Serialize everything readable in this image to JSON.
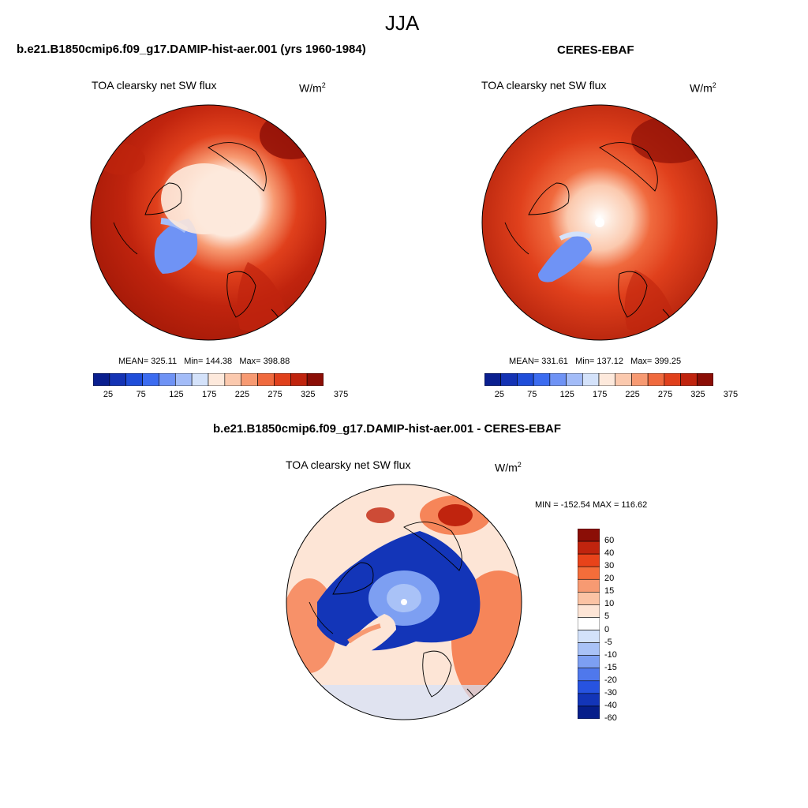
{
  "title": "JJA",
  "panels": {
    "left": {
      "case": "b.e21.B1850cmip6.f09_g17.DAMIP-hist-aer.001 (yrs 1960-1984)",
      "variable": "TOA clearsky net SW flux",
      "unit_base": "W/m",
      "unit_exp": "2",
      "stats": {
        "mean_label": "MEAN=",
        "mean": "325.11",
        "min_label": "Min=",
        "min": "144.38",
        "max_label": "Max=",
        "max": "398.88"
      }
    },
    "right": {
      "case": "CERES-EBAF",
      "variable": "TOA clearsky net SW flux",
      "unit_base": "W/m",
      "unit_exp": "2",
      "stats": {
        "mean_label": "MEAN=",
        "mean": "331.61",
        "min_label": "Min=",
        "min": "137.12",
        "max_label": "Max=",
        "max": "399.25"
      }
    },
    "diff": {
      "case": "b.e21.B1850cmip6.f09_g17.DAMIP-hist-aer.001 - CERES-EBAF",
      "variable": "TOA clearsky net SW flux",
      "unit_base": "W/m",
      "unit_exp": "2",
      "minmax": "MIN = -152.54 MAX = 116.62"
    }
  },
  "abs_colorbar": {
    "colors": [
      "#0a1f8f",
      "#1433b4",
      "#1f4dd9",
      "#3c6cf0",
      "#6f93f5",
      "#a3bcf8",
      "#d4e2fa",
      "#fde9dc",
      "#fbc9ae",
      "#f79a72",
      "#f06a3e",
      "#e0401c",
      "#c0240e",
      "#8b0e06"
    ],
    "labels": [
      "25",
      "75",
      "125",
      "175",
      "225",
      "275",
      "325",
      "375"
    ]
  },
  "diff_colorbar": {
    "colors": [
      "#8b0e06",
      "#c0240e",
      "#e8431a",
      "#f46d3a",
      "#f79a72",
      "#fbc3a4",
      "#fde5d6",
      "#ffffff",
      "#d3e2fb",
      "#a9c2f7",
      "#7d9ff2",
      "#4f78ec",
      "#2753e0",
      "#1335b8",
      "#061e8a"
    ],
    "labels": [
      "60",
      "40",
      "30",
      "20",
      "15",
      "10",
      "5",
      "0",
      "-5",
      "-10",
      "-15",
      "-20",
      "-30",
      "-40",
      "-60"
    ]
  }
}
